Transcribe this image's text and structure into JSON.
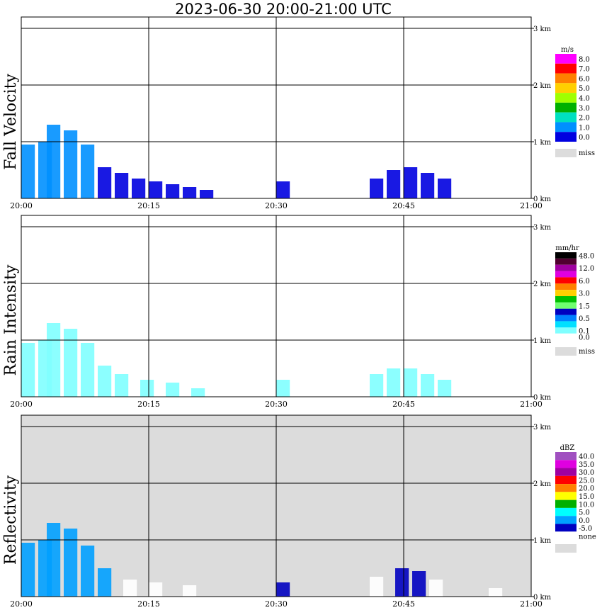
{
  "title": "2023-06-30  20:00-21:00 UTC",
  "x_ticks": [
    "20:00",
    "20:15",
    "20:30",
    "20:45",
    "21:00"
  ],
  "y_ticks": [
    "0 km",
    "1 km",
    "2 km",
    "3 km"
  ],
  "colors": {
    "background": "#ffffff",
    "missing": "#dcdcdc",
    "grid": "#000000"
  },
  "panels": [
    {
      "id": "fall-velocity",
      "label": "Fall Velocity",
      "unit": "m/s",
      "legend": [
        {
          "label": "8.0",
          "color": "#ff00ff"
        },
        {
          "label": "7.0",
          "color": "#ff0000"
        },
        {
          "label": "6.0",
          "color": "#ff8000"
        },
        {
          "label": "5.0",
          "color": "#ffd000"
        },
        {
          "label": "4.0",
          "color": "#a0ff00"
        },
        {
          "label": "3.0",
          "color": "#00b000"
        },
        {
          "label": "2.0",
          "color": "#00e0c0"
        },
        {
          "label": "1.0",
          "color": "#0090ff"
        },
        {
          "label": "0.0",
          "color": "#0000e0"
        }
      ],
      "miss_label": "miss",
      "background": "#ffffff"
    },
    {
      "id": "rain-intensity",
      "label": "Rain Intensity",
      "unit": "mm/hr",
      "legend": [
        {
          "label": "48.0",
          "color": "#000000"
        },
        {
          "label": "",
          "color": "#500030"
        },
        {
          "label": "12.0",
          "color": "#a000a0"
        },
        {
          "label": "",
          "color": "#e000e0"
        },
        {
          "label": "6.0",
          "color": "#ff0000"
        },
        {
          "label": "",
          "color": "#ff8000"
        },
        {
          "label": "3.0",
          "color": "#ffd000"
        },
        {
          "label": "",
          "color": "#00c000"
        },
        {
          "label": "1.5",
          "color": "#70ff70"
        },
        {
          "label": "",
          "color": "#0000c0"
        },
        {
          "label": "0.5",
          "color": "#0080ff"
        },
        {
          "label": "",
          "color": "#00e0ff"
        },
        {
          "label": "0.1",
          "color": "#80ffff"
        },
        {
          "label": "0.0",
          "color": "#ffffff"
        }
      ],
      "miss_label": "miss",
      "background": "#ffffff"
    },
    {
      "id": "reflectivity",
      "label": "Reflectivity",
      "unit": "dBZ",
      "legend": [
        {
          "label": "40.0",
          "color": "#a050c0"
        },
        {
          "label": "35.0",
          "color": "#e000e0"
        },
        {
          "label": "30.0",
          "color": "#a000a0"
        },
        {
          "label": "25.0",
          "color": "#ff0000"
        },
        {
          "label": "20.0",
          "color": "#ff8000"
        },
        {
          "label": "15.0",
          "color": "#ffff00"
        },
        {
          "label": "10.0",
          "color": "#00b000"
        },
        {
          "label": "5.0",
          "color": "#00ffff"
        },
        {
          "label": "0.0",
          "color": "#00a0ff"
        },
        {
          "label": "-5.0",
          "color": "#0000c0"
        },
        {
          "label": "none",
          "color": "#ffffff"
        }
      ],
      "miss_label": "",
      "background": "#dcdcdc"
    }
  ],
  "chart_data": [
    {
      "type": "heatmap",
      "title": "Fall Velocity",
      "ylabel": "Fall Velocity",
      "unit": "m/s",
      "xlim": [
        "20:00",
        "21:00"
      ],
      "ylim_km": [
        0,
        3
      ],
      "grid": true,
      "legend_position": "right",
      "echo_columns": [
        {
          "t_min": 0,
          "top_km": 0.95,
          "dominant": "1.0"
        },
        {
          "t_min": 2,
          "top_km": 1.0,
          "dominant": "1.0"
        },
        {
          "t_min": 3,
          "top_km": 1.3,
          "dominant": "1.0"
        },
        {
          "t_min": 5,
          "top_km": 1.2,
          "dominant": "1.0"
        },
        {
          "t_min": 7,
          "top_km": 0.95,
          "dominant": "1.0"
        },
        {
          "t_min": 9,
          "top_km": 0.55,
          "dominant": "0.0"
        },
        {
          "t_min": 11,
          "top_km": 0.45,
          "dominant": "0.0"
        },
        {
          "t_min": 13,
          "top_km": 0.35,
          "dominant": "0.0"
        },
        {
          "t_min": 15,
          "top_km": 0.3,
          "dominant": "0.0"
        },
        {
          "t_min": 17,
          "top_km": 0.25,
          "dominant": "0.0"
        },
        {
          "t_min": 19,
          "top_km": 0.2,
          "dominant": "0.0"
        },
        {
          "t_min": 21,
          "top_km": 0.15,
          "dominant": "0.0"
        },
        {
          "t_min": 30,
          "top_km": 0.3,
          "dominant": "0.0"
        },
        {
          "t_min": 41,
          "top_km": 0.35,
          "dominant": "0.0"
        },
        {
          "t_min": 43,
          "top_km": 0.5,
          "dominant": "0.0"
        },
        {
          "t_min": 45,
          "top_km": 0.55,
          "dominant": "0.0"
        },
        {
          "t_min": 47,
          "top_km": 0.45,
          "dominant": "0.0"
        },
        {
          "t_min": 49,
          "top_km": 0.35,
          "dominant": "0.0"
        }
      ]
    },
    {
      "type": "heatmap",
      "title": "Rain Intensity",
      "ylabel": "Rain Intensity",
      "unit": "mm/hr",
      "xlim": [
        "20:00",
        "21:00"
      ],
      "ylim_km": [
        0,
        3
      ],
      "grid": true,
      "legend_position": "right",
      "echo_columns": [
        {
          "t_min": 0,
          "top_km": 0.95,
          "dominant": "0.1"
        },
        {
          "t_min": 2,
          "top_km": 1.0,
          "dominant": "0.1"
        },
        {
          "t_min": 3,
          "top_km": 1.3,
          "dominant": "0.1"
        },
        {
          "t_min": 5,
          "top_km": 1.2,
          "dominant": "0.1"
        },
        {
          "t_min": 7,
          "top_km": 0.95,
          "dominant": "0.1"
        },
        {
          "t_min": 9,
          "top_km": 0.55,
          "dominant": "0.1"
        },
        {
          "t_min": 11,
          "top_km": 0.4,
          "dominant": "0.1"
        },
        {
          "t_min": 14,
          "top_km": 0.3,
          "dominant": "0.1"
        },
        {
          "t_min": 17,
          "top_km": 0.25,
          "dominant": "0.1"
        },
        {
          "t_min": 20,
          "top_km": 0.15,
          "dominant": "0.1"
        },
        {
          "t_min": 30,
          "top_km": 0.3,
          "dominant": "0.1"
        },
        {
          "t_min": 41,
          "top_km": 0.4,
          "dominant": "0.1"
        },
        {
          "t_min": 43,
          "top_km": 0.5,
          "dominant": "0.1"
        },
        {
          "t_min": 45,
          "top_km": 0.5,
          "dominant": "0.1"
        },
        {
          "t_min": 47,
          "top_km": 0.4,
          "dominant": "0.1"
        },
        {
          "t_min": 49,
          "top_km": 0.3,
          "dominant": "0.1"
        }
      ]
    },
    {
      "type": "heatmap",
      "title": "Reflectivity",
      "ylabel": "Reflectivity",
      "unit": "dBZ",
      "xlim": [
        "20:00",
        "21:00"
      ],
      "ylim_km": [
        0,
        3
      ],
      "grid": true,
      "legend_position": "right",
      "echo_columns": [
        {
          "t_min": 0,
          "top_km": 0.95,
          "dominant": "0.0"
        },
        {
          "t_min": 2,
          "top_km": 1.0,
          "dominant": "0.0"
        },
        {
          "t_min": 3,
          "top_km": 1.3,
          "dominant": "0.0"
        },
        {
          "t_min": 5,
          "top_km": 1.2,
          "dominant": "0.0"
        },
        {
          "t_min": 7,
          "top_km": 0.9,
          "dominant": "0.0"
        },
        {
          "t_min": 9,
          "top_km": 0.5,
          "dominant": "0.0"
        },
        {
          "t_min": 12,
          "top_km": 0.3,
          "dominant": "none"
        },
        {
          "t_min": 15,
          "top_km": 0.25,
          "dominant": "none"
        },
        {
          "t_min": 19,
          "top_km": 0.2,
          "dominant": "none"
        },
        {
          "t_min": 30,
          "top_km": 0.25,
          "dominant": "-5.0"
        },
        {
          "t_min": 41,
          "top_km": 0.35,
          "dominant": "none"
        },
        {
          "t_min": 44,
          "top_km": 0.5,
          "dominant": "-5.0"
        },
        {
          "t_min": 46,
          "top_km": 0.45,
          "dominant": "-5.0"
        },
        {
          "t_min": 48,
          "top_km": 0.3,
          "dominant": "none"
        },
        {
          "t_min": 55,
          "top_km": 0.15,
          "dominant": "none"
        }
      ]
    }
  ]
}
